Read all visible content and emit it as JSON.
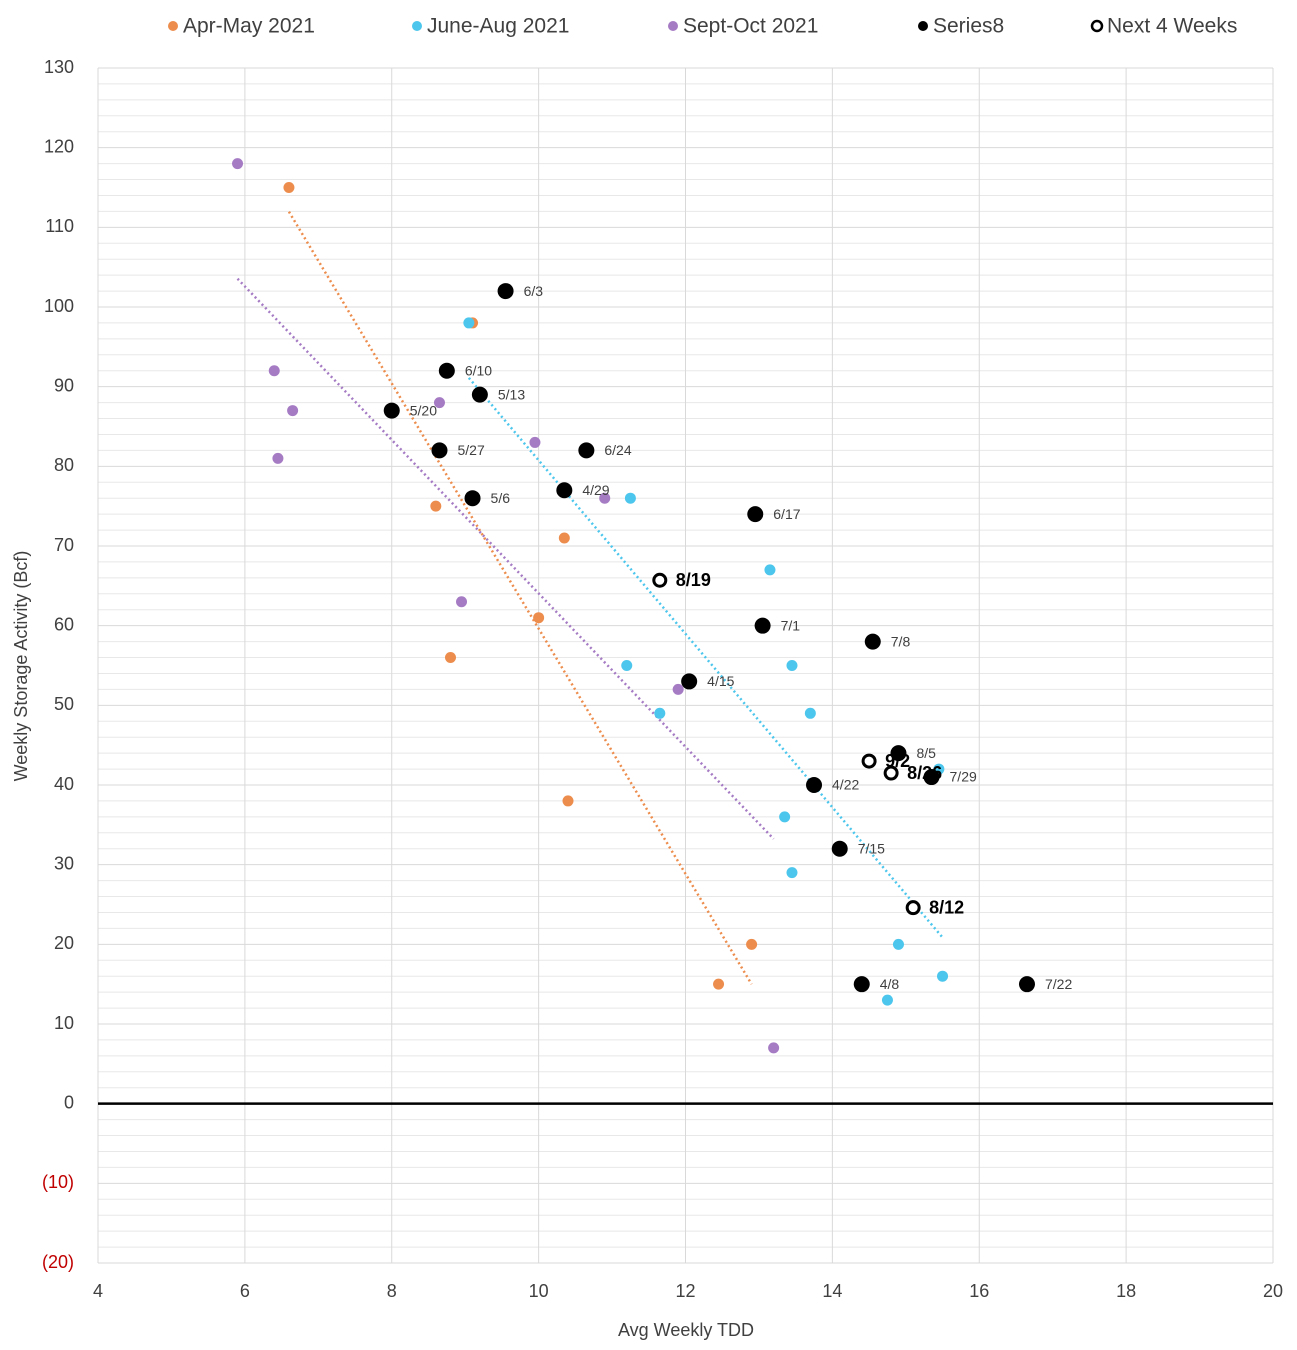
{
  "chart_data": {
    "type": "scatter",
    "x_label": "Avg Weekly TDD",
    "y_label": "Weekly Storage  Activity (Bcf)",
    "xlim": [
      4,
      20
    ],
    "xticks": [
      4,
      6,
      8,
      10,
      12,
      14,
      16,
      18,
      20
    ],
    "ylim": [
      -20,
      130
    ],
    "yticks": [
      {
        "value": -20,
        "label": "(20)"
      },
      {
        "value": -10,
        "label": "(10)"
      },
      0,
      10,
      20,
      30,
      40,
      50,
      60,
      70,
      80,
      90,
      100,
      110,
      120,
      130
    ],
    "negative_tick_color": "#c00000",
    "grid": true,
    "legend": "top",
    "series": [
      {
        "name": "Apr-May 2021",
        "color": "#ed8d4d",
        "marker": "filled",
        "trendline": true,
        "x": [
          6.6,
          9.1,
          8.6,
          10.35,
          10,
          8.8,
          10.4,
          12.9,
          12.45
        ],
        "values": [
          115,
          98,
          75,
          71,
          61,
          56,
          38,
          20,
          15
        ]
      },
      {
        "name": "June-Aug 2021",
        "color": "#4cc6ec",
        "marker": "filled",
        "trendline": true,
        "x": [
          9.05,
          11.25,
          13.15,
          11.2,
          13.45,
          11.65,
          13.7,
          15.45,
          13.35,
          13.45,
          14.9,
          15.5,
          14.75
        ],
        "values": [
          98,
          76,
          67,
          55,
          55,
          49,
          49,
          42,
          36,
          29,
          20,
          16,
          13
        ]
      },
      {
        "name": "Sept-Oct 2021",
        "color": "#a57bc4",
        "marker": "filled",
        "trendline": true,
        "x": [
          5.9,
          6.4,
          6.65,
          6.45,
          8.65,
          9.95,
          10.9,
          8.95,
          11.9,
          13.2
        ],
        "values": [
          118,
          92,
          87,
          81,
          88,
          83,
          76,
          63,
          52,
          7
        ]
      },
      {
        "name": "Series8",
        "color": "#000000",
        "marker": "filled",
        "x": [
          9.55,
          8.75,
          9.2,
          8,
          8.65,
          10.65,
          10.35,
          9.1,
          12.95,
          13.05,
          14.55,
          12.05,
          14.9,
          15.35,
          13.75,
          14.1,
          14.4,
          16.65
        ],
        "values": [
          102,
          92,
          89,
          87,
          82,
          82,
          77,
          76,
          74,
          60,
          58,
          53,
          44,
          41,
          40,
          32,
          15,
          15
        ],
        "point_labels": [
          "6/3",
          "6/10",
          "5/13",
          "5/20",
          "5/27",
          "6/24",
          "4/29",
          "5/6",
          "6/17",
          "7/1",
          "7/8",
          "4/15",
          "8/5",
          "7/29",
          "4/22",
          "7/15",
          "4/8",
          "7/22"
        ]
      },
      {
        "name": "Next 4 Weeks",
        "color": "#000000",
        "marker": "open",
        "x": [
          11.65,
          14.5,
          14.8,
          15.1
        ],
        "values": [
          65.7,
          43,
          41.5,
          24.6
        ],
        "point_labels": [
          "8/19",
          "9/2",
          "8/26",
          "8/12"
        ]
      }
    ]
  }
}
